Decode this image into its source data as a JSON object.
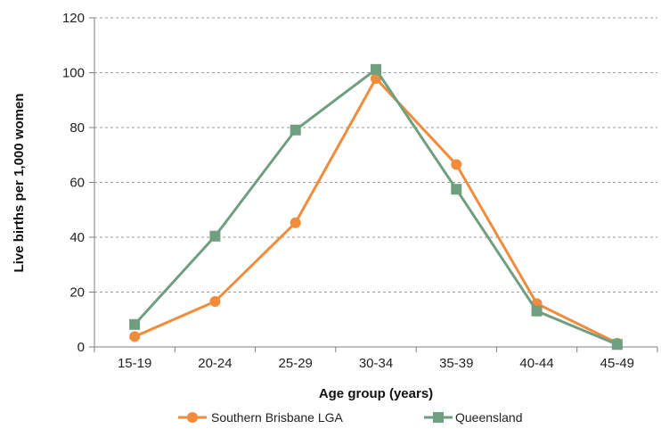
{
  "chart_data": {
    "type": "line",
    "title": "",
    "xlabel": "Age group (years)",
    "ylabel": "Live births per 1,000 women",
    "categories": [
      "15-19",
      "20-24",
      "25-29",
      "30-34",
      "35-39",
      "40-44",
      "45-49"
    ],
    "ylim": [
      0,
      120
    ],
    "yticks": [
      0,
      20,
      40,
      60,
      80,
      100,
      120
    ],
    "grid": "horizontal dashed",
    "legend_position": "bottom",
    "series": [
      {
        "name": "Southern Brisbane LGA",
        "marker": "circle",
        "color": "#F08C3C",
        "values": [
          3.8,
          16.6,
          45.3,
          97.9,
          66.5,
          15.8,
          1.4
        ]
      },
      {
        "name": "Queensland",
        "marker": "square",
        "color": "#6F9F7F",
        "values": [
          8.2,
          40.4,
          79.1,
          101.2,
          57.5,
          13.1,
          0.9
        ]
      }
    ]
  }
}
